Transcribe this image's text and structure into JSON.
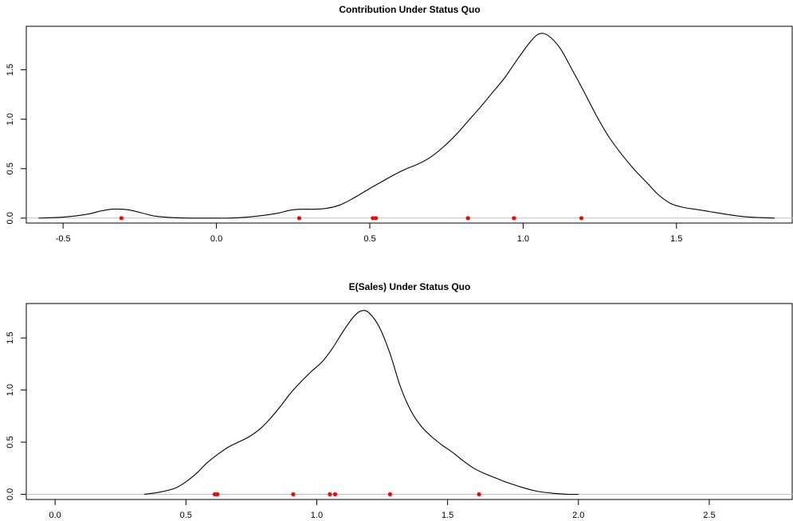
{
  "chart_data": [
    {
      "type": "line",
      "title": "Contribution Under Status Quo",
      "xlabel": "",
      "ylabel": "",
      "xlim": [
        -0.62,
        1.88
      ],
      "ylim": [
        -0.05,
        1.94
      ],
      "x_ticks": [
        -0.5,
        0.0,
        0.5,
        1.0,
        1.5
      ],
      "x_tick_labels": [
        "-0.5",
        "0.0",
        "0.5",
        "1.0",
        "1.5"
      ],
      "y_ticks": [
        0.0,
        0.5,
        1.0,
        1.5
      ],
      "y_tick_labels": [
        "0.0",
        "0.5",
        "1.0",
        "1.5"
      ],
      "grid": false,
      "baseline": 0,
      "series": [
        {
          "style": "density-curve",
          "color": "#000000",
          "x": [
            -0.58,
            -0.5,
            -0.42,
            -0.38,
            -0.34,
            -0.31,
            -0.28,
            -0.24,
            -0.2,
            -0.14,
            -0.08,
            -0.02,
            0.04,
            0.1,
            0.16,
            0.2,
            0.24,
            0.28,
            0.32,
            0.36,
            0.4,
            0.44,
            0.5,
            0.54,
            0.58,
            0.62,
            0.66,
            0.7,
            0.74,
            0.78,
            0.82,
            0.86,
            0.9,
            0.94,
            0.98,
            1.02,
            1.05,
            1.08,
            1.12,
            1.16,
            1.2,
            1.24,
            1.28,
            1.32,
            1.36,
            1.4,
            1.44,
            1.48,
            1.52,
            1.56,
            1.6,
            1.66,
            1.72,
            1.78,
            1.82
          ],
          "y": [
            0.0,
            0.01,
            0.04,
            0.07,
            0.09,
            0.09,
            0.08,
            0.05,
            0.02,
            0.005,
            0.0,
            0.0,
            0.0,
            0.01,
            0.03,
            0.05,
            0.08,
            0.09,
            0.09,
            0.1,
            0.13,
            0.19,
            0.3,
            0.37,
            0.44,
            0.5,
            0.55,
            0.62,
            0.72,
            0.84,
            0.98,
            1.12,
            1.27,
            1.42,
            1.6,
            1.77,
            1.86,
            1.85,
            1.72,
            1.5,
            1.27,
            1.03,
            0.82,
            0.65,
            0.5,
            0.37,
            0.24,
            0.15,
            0.11,
            0.09,
            0.07,
            0.04,
            0.015,
            0.005,
            0.0
          ]
        },
        {
          "style": "points",
          "color": "#ff0000",
          "x": [
            -0.31,
            0.27,
            0.51,
            0.52,
            0.82,
            0.97,
            1.19
          ],
          "y": [
            0,
            0,
            0,
            0,
            0,
            0,
            0
          ]
        }
      ]
    },
    {
      "type": "line",
      "title": "E(Sales) Under Status Quo",
      "xlabel": "",
      "ylabel": "",
      "xlim": [
        -0.11,
        2.82
      ],
      "ylim": [
        -0.05,
        1.83
      ],
      "x_ticks": [
        0.0,
        0.5,
        1.0,
        1.5,
        2.0,
        2.5
      ],
      "x_tick_labels": [
        "0.0",
        "0.5",
        "1.0",
        "1.5",
        "2.0",
        "2.5"
      ],
      "y_ticks": [
        0.0,
        0.5,
        1.0,
        1.5
      ],
      "y_tick_labels": [
        "0.0",
        "0.5",
        "1.0",
        "1.5"
      ],
      "grid": false,
      "baseline": 0,
      "series": [
        {
          "style": "density-curve",
          "color": "#000000",
          "x": [
            0.34,
            0.4,
            0.46,
            0.5,
            0.54,
            0.58,
            0.62,
            0.66,
            0.7,
            0.74,
            0.78,
            0.82,
            0.86,
            0.9,
            0.94,
            0.98,
            1.02,
            1.06,
            1.1,
            1.14,
            1.17,
            1.2,
            1.24,
            1.28,
            1.32,
            1.36,
            1.4,
            1.44,
            1.48,
            1.52,
            1.56,
            1.6,
            1.64,
            1.68,
            1.72,
            1.78,
            1.84,
            1.9,
            1.96,
            2.0
          ],
          "y": [
            0.0,
            0.02,
            0.06,
            0.12,
            0.2,
            0.3,
            0.38,
            0.45,
            0.5,
            0.55,
            0.62,
            0.72,
            0.84,
            0.97,
            1.08,
            1.18,
            1.27,
            1.4,
            1.56,
            1.7,
            1.76,
            1.74,
            1.6,
            1.35,
            1.03,
            0.8,
            0.65,
            0.55,
            0.47,
            0.4,
            0.32,
            0.25,
            0.2,
            0.16,
            0.12,
            0.07,
            0.03,
            0.01,
            0.0,
            0.0
          ]
        },
        {
          "style": "points",
          "color": "#ff0000",
          "x": [
            0.61,
            0.62,
            0.91,
            1.05,
            1.07,
            1.28,
            1.62
          ],
          "y": [
            0,
            0,
            0,
            0,
            0,
            0,
            0
          ]
        }
      ]
    }
  ]
}
